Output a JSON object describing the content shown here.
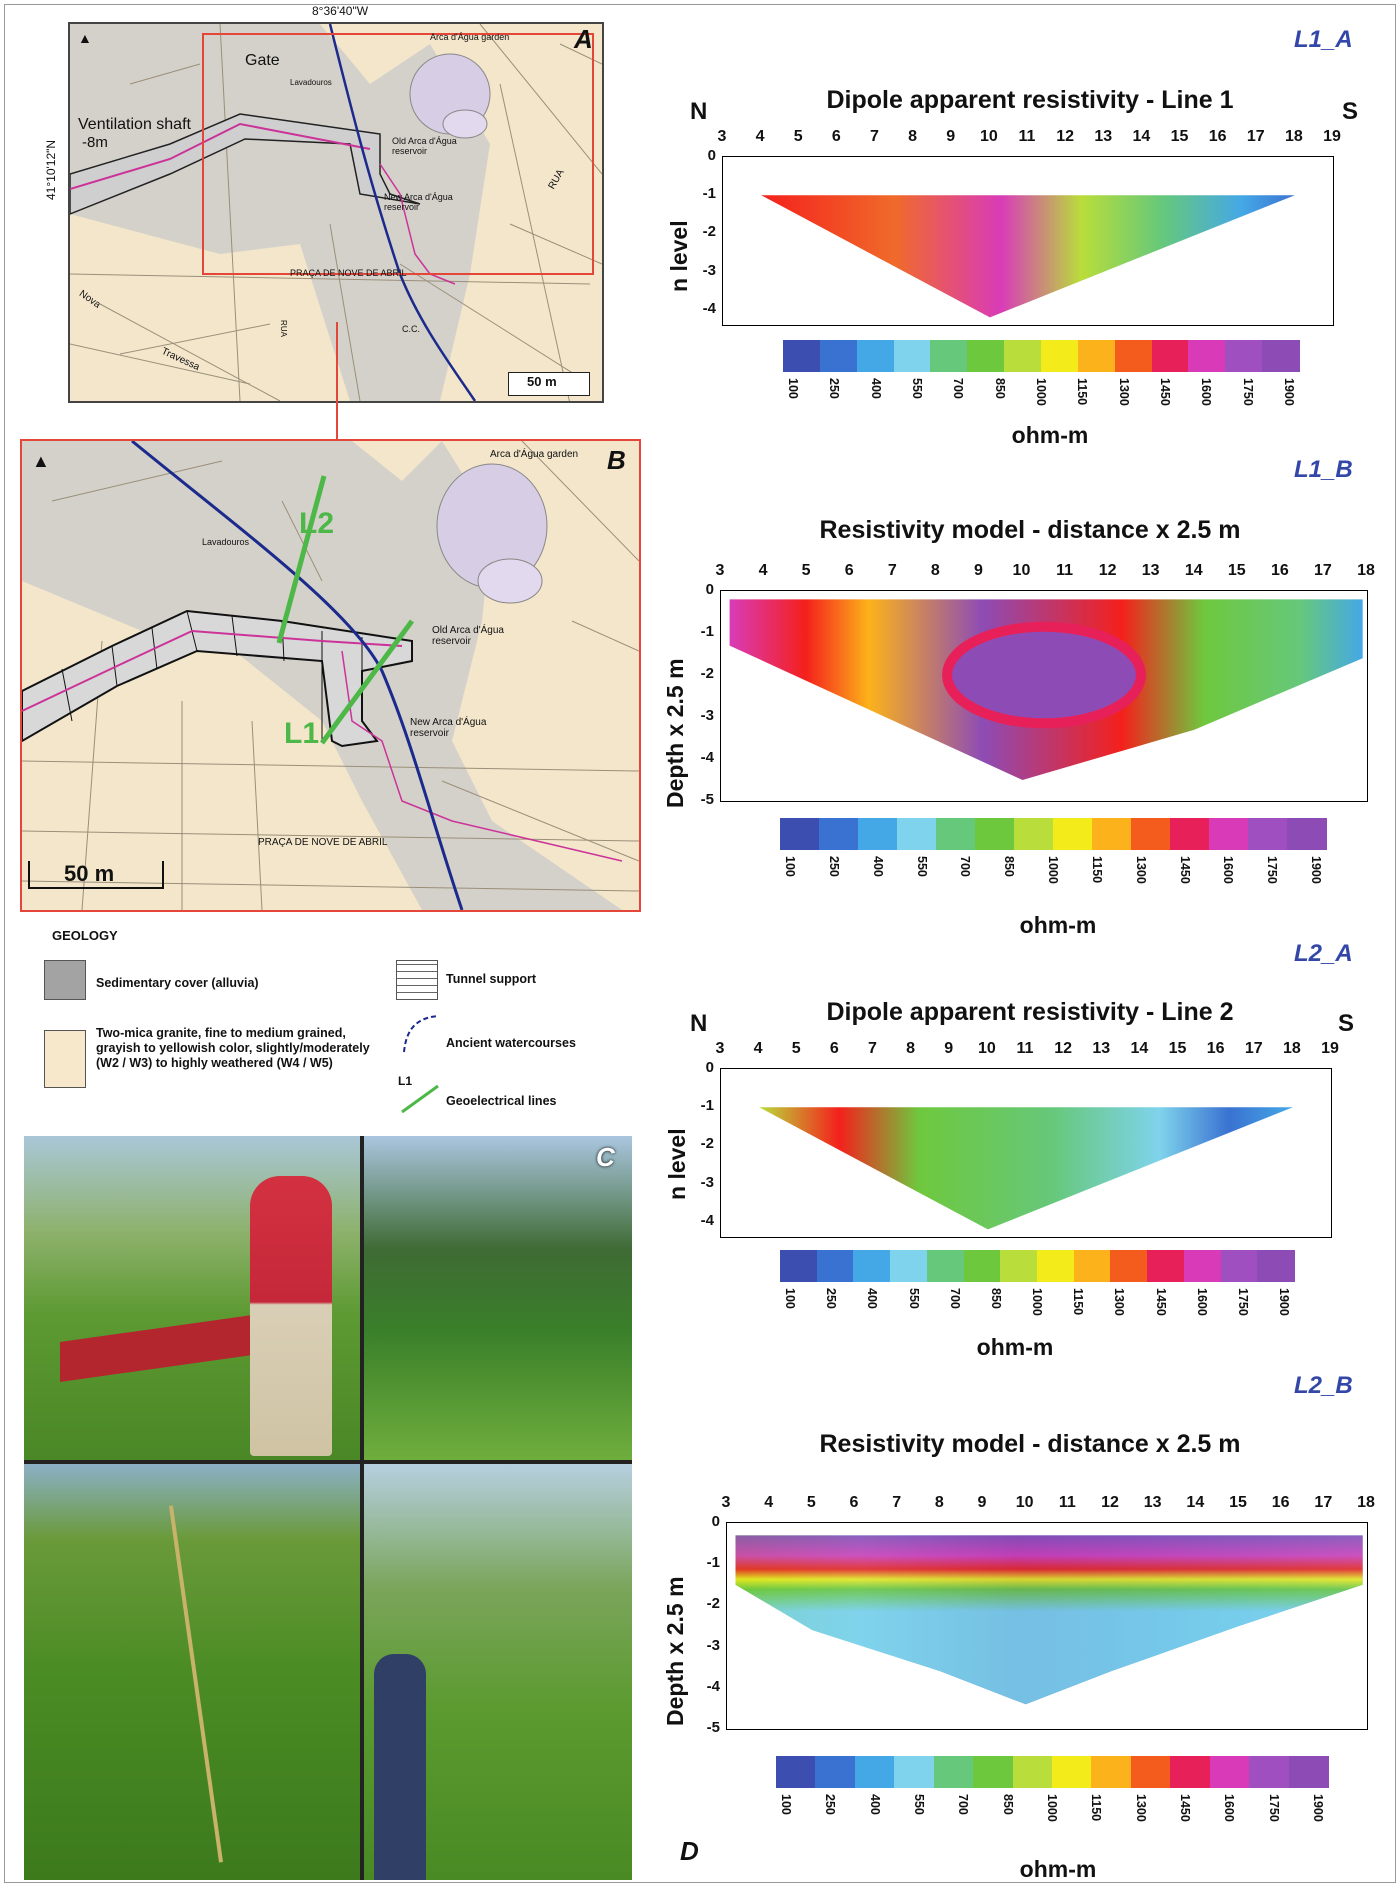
{
  "maps": {
    "A": {
      "label": "A",
      "coord_top": "8°36'40\"W",
      "coord_left": "41°10'12\"N",
      "scale": "50 m",
      "labels": {
        "gate": "Gate",
        "vent": "Ventilation shaft",
        "vent_depth": "-8m",
        "arca_garden": "Arca d'Água garden",
        "old_reservoir": "Old Arca d'Água reservoir",
        "new_reservoir": "New Arca d'Água reservoir",
        "praca": "PRAÇA DE NOVE DE ABRIL",
        "lavadouros": "Lavadouros",
        "rua": "RUA",
        "rua2": "RUA",
        "nova": "Nova",
        "travessa": "Travessa",
        "cc": "C.C."
      }
    },
    "B": {
      "label": "B",
      "scale": "50 m",
      "labels": {
        "arca_garden": "Arca d'Água garden",
        "old_reservoir": "Old Arca d'Água reservoir",
        "new_reservoir": "New Arca d'Água reservoir",
        "praca": "PRAÇA DE NOVE DE ABRIL",
        "lavadouros": "Lavadouros",
        "L1": "L1",
        "L2": "L2"
      }
    }
  },
  "legend": {
    "title": "GEOLOGY",
    "items": [
      {
        "name": "sedimentary",
        "text": "Sedimentary cover (alluvia)",
        "color": "#a3a3a3"
      },
      {
        "name": "granite",
        "text": "Two-mica granite, fine to medium grained, grayish to yellowish color, slightly/moderately (W2 / W3) to highly weathered (W4 / W5)",
        "color": "#f7e8cc"
      },
      {
        "name": "tunnel",
        "text": "Tunnel support"
      },
      {
        "name": "watercourses",
        "text": "Ancient watercourses"
      },
      {
        "name": "lines",
        "text": "Geoelectrical lines",
        "symbol": "L1"
      }
    ]
  },
  "photos": {
    "label": "C"
  },
  "panel_D": {
    "label": "D"
  },
  "colorbar": {
    "unit": "ohm-m",
    "ticks": [
      "100",
      "250",
      "400",
      "550",
      "700",
      "850",
      "1000",
      "1150",
      "1300",
      "1450",
      "1600",
      "1750",
      "1900"
    ],
    "colors": [
      "#3c4fb1",
      "#3a72d1",
      "#45a8e6",
      "#7fd3ec",
      "#66c87a",
      "#6ec83e",
      "#b9dd3a",
      "#f3ec1a",
      "#fcb21a",
      "#f45c1e",
      "#e8205a",
      "#d93bb8",
      "#9f4fc0",
      "#8d4cb5"
    ]
  },
  "chart_data": [
    {
      "id": "L1_A",
      "type": "heatmap",
      "title": "Dipole apparent resistivity - Line 1",
      "xticks": [
        "3",
        "4",
        "5",
        "6",
        "7",
        "8",
        "9",
        "10",
        "11",
        "12",
        "13",
        "14",
        "15",
        "16",
        "17",
        "18",
        "19"
      ],
      "xlim": [
        3,
        19
      ],
      "ylabel": "n level",
      "yticks": [
        "0",
        "-1",
        "-2",
        "-3",
        "-4"
      ],
      "ylim": [
        -4.4,
        0
      ],
      "left_label": "N",
      "right_label": "S"
    },
    {
      "id": "L1_B",
      "type": "heatmap",
      "title": "Resistivity model - distance x 2.5 m",
      "xticks": [
        "3",
        "4",
        "5",
        "6",
        "7",
        "8",
        "9",
        "10",
        "11",
        "12",
        "13",
        "14",
        "15",
        "16",
        "17",
        "18"
      ],
      "xlim": [
        3,
        18
      ],
      "ylabel": "Depth x 2.5 m",
      "yticks": [
        "0",
        "-1",
        "-2",
        "-3",
        "-4",
        "-5"
      ],
      "ylim": [
        -5,
        0
      ]
    },
    {
      "id": "L2_A",
      "type": "heatmap",
      "title": "Dipole apparent resistivity - Line 2",
      "xticks": [
        "3",
        "4",
        "5",
        "6",
        "7",
        "8",
        "9",
        "10",
        "11",
        "12",
        "13",
        "14",
        "15",
        "16",
        "17",
        "18",
        "19"
      ],
      "xlim": [
        3,
        19
      ],
      "ylabel": "n level",
      "yticks": [
        "0",
        "-1",
        "-2",
        "-3",
        "-4"
      ],
      "ylim": [
        -4.4,
        0
      ],
      "left_label": "N",
      "right_label": "S"
    },
    {
      "id": "L2_B",
      "type": "heatmap",
      "title": "Resistivity model - distance x 2.5 m",
      "xticks": [
        "3",
        "4",
        "5",
        "6",
        "7",
        "8",
        "9",
        "10",
        "11",
        "12",
        "13",
        "14",
        "15",
        "16",
        "17",
        "18"
      ],
      "xlim": [
        3,
        18
      ],
      "ylabel": "Depth x 2.5 m",
      "yticks": [
        "0",
        "-1",
        "-2",
        "-3",
        "-4",
        "-5"
      ],
      "ylim": [
        -5,
        0
      ]
    }
  ]
}
